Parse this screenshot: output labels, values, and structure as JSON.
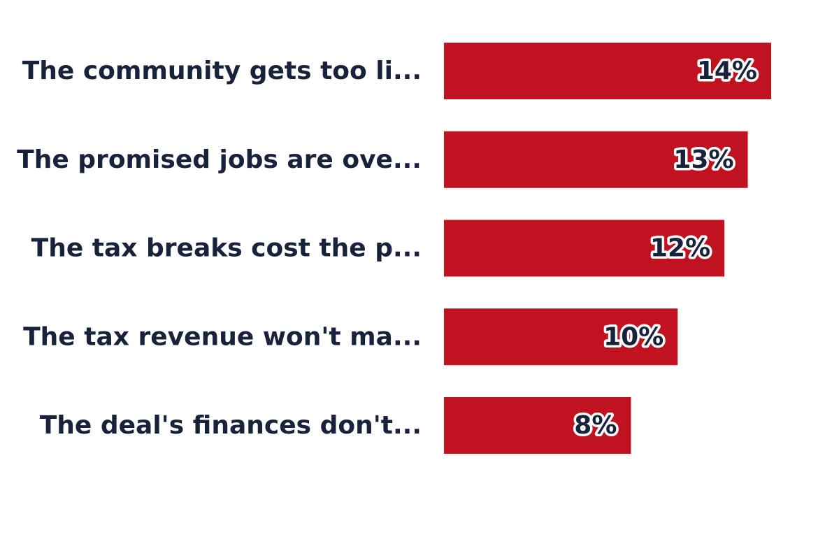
{
  "chart_data": {
    "type": "bar",
    "orientation": "horizontal",
    "categories": [
      "The community gets too li...",
      "The promised jobs are ove...",
      "The tax breaks cost the p...",
      "The tax revenue won't ma...",
      "The deal's finances don't..."
    ],
    "values": [
      14,
      13,
      12,
      10,
      8
    ],
    "value_labels": [
      "14%",
      "13%",
      "12%",
      "10%",
      "8%"
    ],
    "unit": "%",
    "xlim": [
      0,
      14
    ],
    "grid": false,
    "bar_color": "#c1121f"
  }
}
